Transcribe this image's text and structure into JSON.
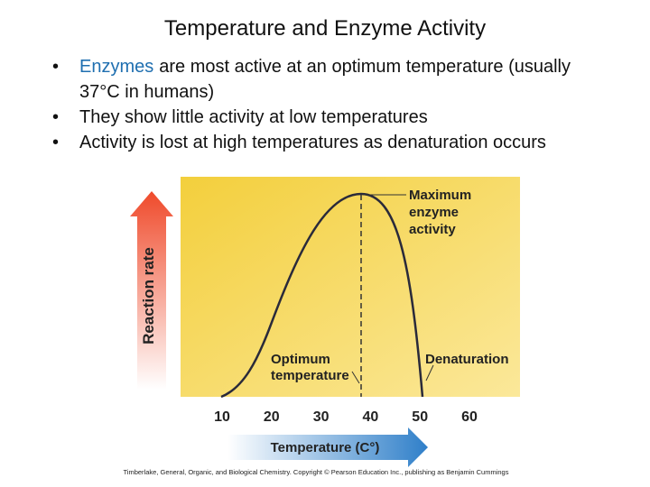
{
  "slide": {
    "title": "Temperature and Enzyme Activity",
    "bullets": [
      [
        "Enzymes",
        "are most active at an optimum temperature (usually  37°C in humans)"
      ],
      [
        "They show little activity at low temperatures"
      ],
      [
        "Activity is lost at high temperatures as denaturation occurs"
      ]
    ],
    "figure": {
      "y_axis_label": "Reaction rate",
      "x_axis_label": "Temperature (C°)",
      "xticks": [
        10,
        20,
        30,
        40,
        50,
        60
      ],
      "annotations": {
        "maximum": [
          "Maximum",
          "enzyme",
          "activity"
        ],
        "optimum": [
          "Optimum",
          "temperature"
        ],
        "denaturation": [
          "Denaturation"
        ]
      },
      "credit": "Timberlake, General, Organic, and Biological Chemistry. Copyright © Pearson Education Inc., publishing as Benjamin Cummings"
    }
  }
}
